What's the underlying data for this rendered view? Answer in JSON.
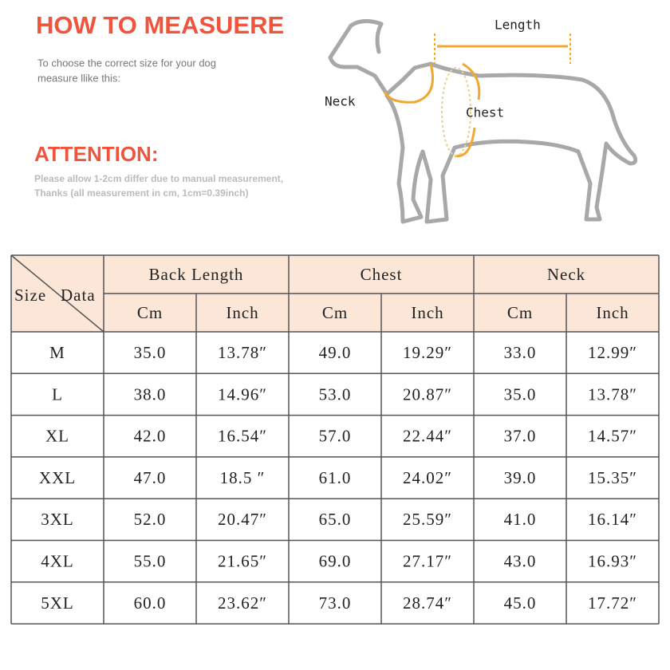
{
  "header": {
    "title": "HOW TO MEASUERE",
    "subtitle": [
      "To choose the correct size for your dog",
      "measure llike this:"
    ]
  },
  "attention": {
    "title": "ATTENTION:",
    "lines": [
      "Please allow 1-2cm differ due to manual measurement,",
      "Thanks (all measurement in cm, 1cm=0.39inch)"
    ]
  },
  "diagram": {
    "labels": {
      "length": "Length",
      "neck": "Neck",
      "chest": "Chest"
    }
  },
  "table": {
    "corner": [
      "Size",
      "Data"
    ],
    "groups": [
      "Back Length",
      "Chest",
      "Neck"
    ],
    "units": [
      "Cm",
      "Inch",
      "Cm",
      "Inch",
      "Cm",
      "Inch"
    ],
    "rows": [
      [
        "M",
        "35.0",
        "13.78″",
        "49.0",
        "19.29″",
        "33.0",
        "12.99″"
      ],
      [
        "L",
        "38.0",
        "14.96″",
        "53.0",
        "20.87″",
        "35.0",
        "13.78″"
      ],
      [
        "XL",
        "42.0",
        "16.54″",
        "57.0",
        "22.44″",
        "37.0",
        "14.57″"
      ],
      [
        "XXL",
        "47.0",
        "18.5 ″",
        "61.0",
        "24.02″",
        "39.0",
        "15.35″"
      ],
      [
        "3XL",
        "52.0",
        "20.47″",
        "65.0",
        "25.59″",
        "41.0",
        "16.14″"
      ],
      [
        "4XL",
        "55.0",
        "21.65″",
        "69.0",
        "27.17″",
        "43.0",
        "16.93″"
      ],
      [
        "5XL",
        "60.0",
        "23.62″",
        "73.0",
        "28.74″",
        "45.0",
        "17.72″"
      ]
    ]
  }
}
